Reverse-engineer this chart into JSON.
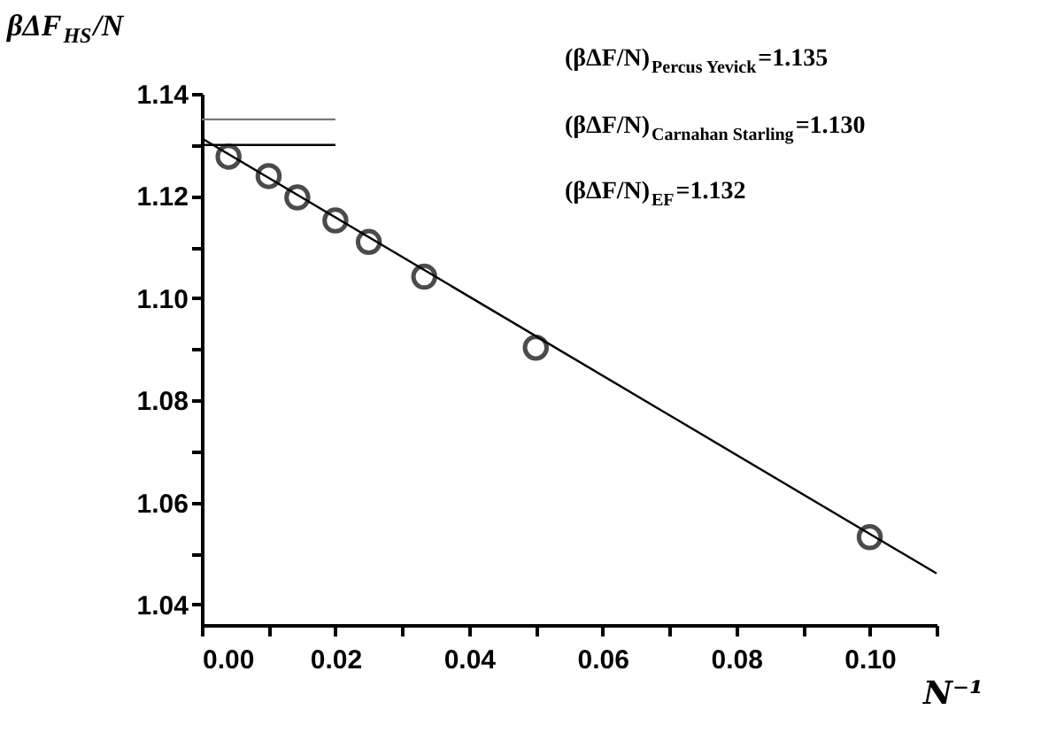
{
  "chart_data": {
    "type": "scatter",
    "xlabel": "N⁻¹",
    "ylabel": "βΔF$_{HS}$/N",
    "x": [
      0.004,
      0.01,
      0.0143,
      0.02,
      0.025,
      0.0333,
      0.05,
      0.1
    ],
    "series": [
      {
        "color": "#000000",
        "marker": "circle",
        "values": [
          1.1277,
          1.1239,
          1.1197,
          1.1152,
          1.111,
          1.1042,
          1.0903,
          1.0532
        ]
      },
      {
        "type": "line",
        "color": "#000000",
        "x": [
          0,
          0.11
        ],
        "values": [
          1.1313,
          1.0461
        ]
      },
      {
        "type": "line",
        "color": "#777777",
        "x": [
          0,
          0.02
        ],
        "values": [
          1.135,
          1.135
        ]
      },
      {
        "type": "line",
        "color": "#000000",
        "x": [
          0,
          0.02
        ],
        "values": [
          1.13,
          1.13
        ]
      }
    ],
    "xlim": [
      0,
      0.11
    ],
    "xticks": [
      {
        "value": 0,
        "label": "0.00"
      },
      {
        "value": 0.01,
        "label": null
      },
      {
        "value": 0.02,
        "label": "0.02"
      },
      {
        "value": 0.03,
        "label": null
      },
      {
        "value": 0.04,
        "label": "0.04"
      },
      {
        "value": 0.05,
        "label": null
      },
      {
        "value": 0.06,
        "label": "0.06"
      },
      {
        "value": 0.07,
        "label": null
      },
      {
        "value": 0.08,
        "label": "0.08"
      },
      {
        "value": 0.09,
        "label": null
      },
      {
        "value": 0.1,
        "label": "0.10"
      },
      {
        "value": 0.11,
        "label": null
      }
    ],
    "ylim": [
      1.036,
      1.14
    ],
    "yticks": [
      {
        "value": 1.04,
        "label": "1.04"
      },
      {
        "value": 1.05,
        "label": null
      },
      {
        "value": 1.06,
        "label": "1.06"
      },
      {
        "value": 1.07,
        "label": null
      },
      {
        "value": 1.08,
        "label": "1.08"
      },
      {
        "value": 1.09,
        "label": null
      },
      {
        "value": 1.1,
        "label": "1.10"
      },
      {
        "value": 1.11,
        "label": null
      },
      {
        "value": 1.12,
        "label": "1.12"
      },
      {
        "value": 1.13,
        "label": null
      },
      {
        "value": 1.14,
        "label": "1.14"
      }
    ],
    "annotations": [
      "(βΔF/N)$_{Percus Yevick}$=1.135",
      "(βΔF/N)$_{Carnahan Starling}$=1.130",
      "(βΔF/N)$_{EF}$=1.132"
    ],
    "grid": false
  }
}
